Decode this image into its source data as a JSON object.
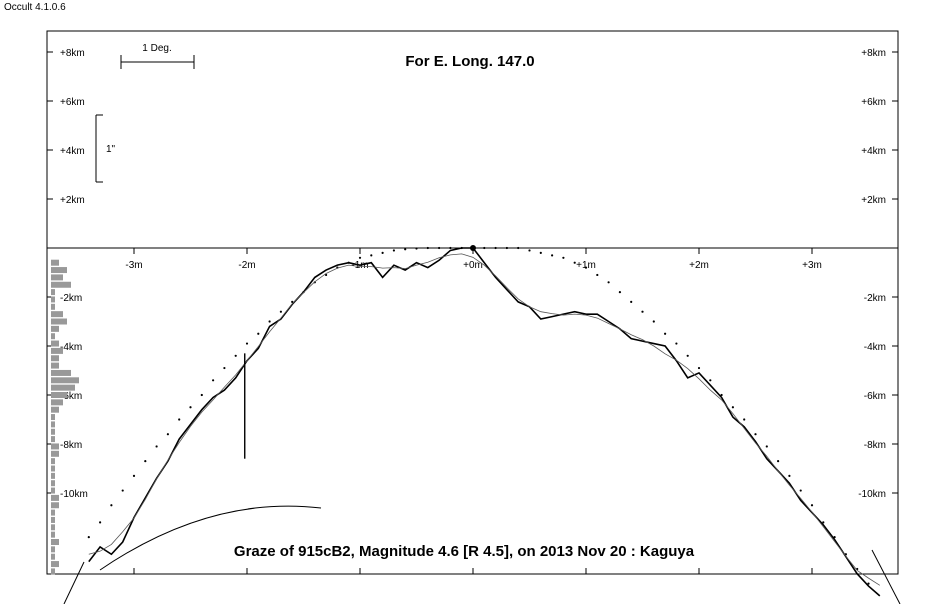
{
  "window": {
    "app_title": "Occult 4.1.0.6"
  },
  "chart_data": {
    "type": "line",
    "title": "For E. Long. 147.0",
    "caption": "Graze of  915cB2,  Magnitude 4.6 [R 4.5],  on 2013 Nov 20  :  Kaguya",
    "scale_bar_label": "1 Deg.",
    "arcsec_bar_label": "1\"",
    "y_unit": "km",
    "x_unit": "m",
    "ylim": [
      -13.5,
      8.8
    ],
    "xlim": [
      -3.8,
      3.7
    ],
    "y_tick_labels": [
      {
        "value": 8,
        "label": "+8km"
      },
      {
        "value": 6,
        "label": "+6km"
      },
      {
        "value": 4,
        "label": "+4km"
      },
      {
        "value": 2,
        "label": "+2km"
      },
      {
        "value": -2,
        "label": "-2km"
      },
      {
        "value": -4,
        "label": "-4km"
      },
      {
        "value": -6,
        "label": "-6km"
      },
      {
        "value": -8,
        "label": "-8km"
      },
      {
        "value": -10,
        "label": "-10km"
      }
    ],
    "x_tick_labels": [
      {
        "value": -3,
        "label": "-3m"
      },
      {
        "value": -2,
        "label": "-2m"
      },
      {
        "value": -1,
        "label": "-1m"
      },
      {
        "value": 0,
        "label": "+0m"
      },
      {
        "value": 1,
        "label": "+1m"
      },
      {
        "value": 2,
        "label": "+2m"
      },
      {
        "value": 3,
        "label": "+3m"
      }
    ],
    "series": [
      {
        "role": "limb-profile",
        "x": [
          -3.4,
          -3.3,
          -3.2,
          -3.1,
          -3.0,
          -2.9,
          -2.8,
          -2.7,
          -2.6,
          -2.5,
          -2.4,
          -2.3,
          -2.2,
          -2.1,
          -2.0,
          -1.9,
          -1.8,
          -1.7,
          -1.6,
          -1.5,
          -1.4,
          -1.3,
          -1.2,
          -1.1,
          -1.0,
          -0.9,
          -0.8,
          -0.7,
          -0.6,
          -0.5,
          -0.4,
          -0.3,
          -0.2,
          -0.1,
          0.0,
          0.1,
          0.2,
          0.3,
          0.4,
          0.5,
          0.6,
          0.7,
          0.8,
          0.9,
          1.0,
          1.1,
          1.2,
          1.3,
          1.4,
          1.5,
          1.6,
          1.7,
          1.8,
          1.9,
          2.0,
          2.1,
          2.2,
          2.3,
          2.4,
          2.5,
          2.6,
          2.7,
          2.8,
          2.9,
          3.0,
          3.1,
          3.2,
          3.3,
          3.4,
          3.5,
          3.6
        ],
        "y": [
          -12.8,
          -12.2,
          -12.5,
          -12.0,
          -11.0,
          -10.2,
          -9.4,
          -8.7,
          -7.8,
          -7.2,
          -6.6,
          -6.1,
          -5.8,
          -5.3,
          -4.6,
          -4.1,
          -3.2,
          -2.9,
          -2.3,
          -1.8,
          -1.2,
          -0.9,
          -0.7,
          -0.6,
          -0.7,
          -0.6,
          -1.2,
          -0.7,
          -0.9,
          -0.6,
          -0.8,
          -0.5,
          -0.1,
          0.0,
          0.0,
          -0.6,
          -1.2,
          -1.7,
          -2.2,
          -2.4,
          -2.9,
          -2.8,
          -2.7,
          -2.6,
          -2.7,
          -2.7,
          -3.0,
          -3.3,
          -3.7,
          -3.8,
          -3.9,
          -4.0,
          -4.6,
          -5.3,
          -5.1,
          -5.6,
          -6.1,
          -6.9,
          -7.3,
          -7.9,
          -8.6,
          -9.1,
          -9.6,
          -10.3,
          -10.8,
          -11.3,
          -11.9,
          -12.6,
          -13.3,
          -13.8,
          -14.2
        ]
      },
      {
        "role": "reference-dots",
        "x": [
          -3.4,
          -3.3,
          -3.2,
          -3.1,
          -3.0,
          -2.9,
          -2.8,
          -2.7,
          -2.6,
          -2.5,
          -2.4,
          -2.3,
          -2.2,
          -2.1,
          -2.0,
          -1.9,
          -1.8,
          -1.7,
          -1.6,
          -1.5,
          -1.4,
          -1.3,
          -1.2,
          -1.1,
          -1.0,
          -0.9,
          -0.8,
          -0.7,
          -0.6,
          -0.5,
          -0.4,
          -0.3,
          -0.2,
          -0.1,
          0.1,
          0.2,
          0.3,
          0.4,
          0.5,
          0.6,
          0.7,
          0.8,
          0.9,
          1.0,
          1.1,
          1.2,
          1.3,
          1.4,
          1.5,
          1.6,
          1.7,
          1.8,
          1.9,
          2.0,
          2.1,
          2.2,
          2.3,
          2.4,
          2.5,
          2.6,
          2.7,
          2.8,
          2.9,
          3.0,
          3.1,
          3.2,
          3.3,
          3.4,
          3.5
        ],
        "y": [
          -11.8,
          -11.2,
          -10.5,
          -9.9,
          -9.3,
          -8.7,
          -8.1,
          -7.6,
          -7.0,
          -6.5,
          -6.0,
          -5.4,
          -4.9,
          -4.4,
          -3.9,
          -3.5,
          -3.0,
          -2.6,
          -2.2,
          -1.8,
          -1.4,
          -1.1,
          -0.8,
          -0.6,
          -0.4,
          -0.3,
          -0.2,
          -0.1,
          -0.05,
          -0.02,
          0.0,
          0.0,
          0.0,
          0.0,
          0.0,
          0.0,
          0.0,
          0.0,
          -0.1,
          -0.2,
          -0.3,
          -0.4,
          -0.6,
          -0.8,
          -1.1,
          -1.4,
          -1.8,
          -2.2,
          -2.6,
          -3.0,
          -3.5,
          -3.9,
          -4.4,
          -4.9,
          -5.4,
          -6.0,
          -6.5,
          -7.0,
          -7.6,
          -8.1,
          -8.7,
          -9.3,
          -9.9,
          -10.5,
          -11.2,
          -11.8,
          -12.5,
          -13.1,
          -13.7
        ]
      }
    ],
    "center_marker": {
      "x": 0,
      "y": 0
    },
    "spike": {
      "x": -2.02,
      "y_top": -4.3,
      "y_bottom": -8.6
    },
    "histogram": {
      "y": [
        -0.6,
        -0.9,
        -1.2,
        -1.5,
        -1.8,
        -2.1,
        -2.4,
        -2.7,
        -3.0,
        -3.3,
        -3.6,
        -3.9,
        -4.2,
        -4.5,
        -4.8,
        -5.1,
        -5.4,
        -5.7,
        -6.0,
        -6.3,
        -6.6,
        -6.9,
        -7.2,
        -7.5,
        -7.8,
        -8.1,
        -8.4,
        -8.7,
        -9.0,
        -9.3,
        -9.6,
        -9.9,
        -10.2,
        -10.5,
        -10.8,
        -11.1,
        -11.4,
        -11.7,
        -12.0,
        -12.3,
        -12.6,
        -12.9,
        -13.2
      ],
      "counts": [
        2,
        4,
        3,
        5,
        1,
        1,
        1,
        3,
        4,
        2,
        1,
        2,
        3,
        2,
        2,
        5,
        7,
        6,
        4,
        3,
        2,
        1,
        1,
        1,
        1,
        2,
        2,
        1,
        1,
        1,
        1,
        1,
        2,
        2,
        1,
        1,
        1,
        1,
        2,
        1,
        1,
        2,
        1
      ]
    }
  }
}
